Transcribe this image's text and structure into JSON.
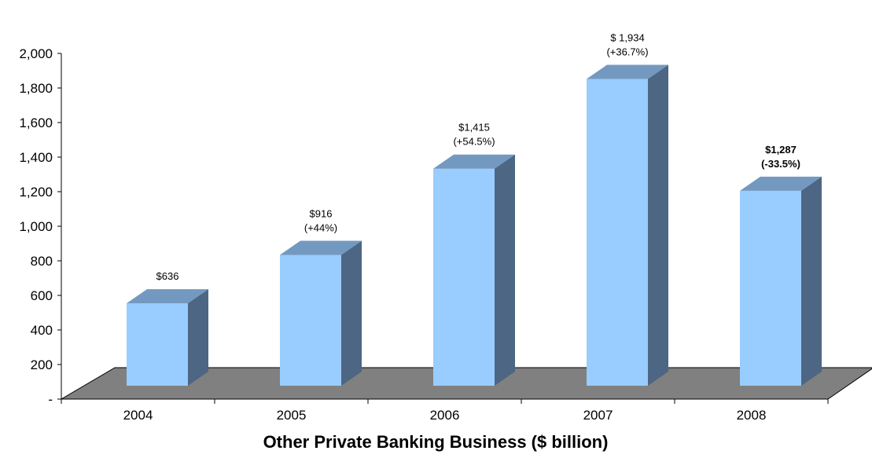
{
  "chart_data": {
    "type": "bar",
    "categories": [
      "2004",
      "2005",
      "2006",
      "2007",
      "2008"
    ],
    "values": [
      636,
      916,
      1415,
      1934,
      1287
    ],
    "data_labels": [
      {
        "amount": "$636",
        "change": "",
        "bold": false
      },
      {
        "amount": "$916",
        "change": "(+44%)",
        "bold": false
      },
      {
        "amount": "$1,415",
        "change": "(+54.5%)",
        "bold": false
      },
      {
        "amount": "$ 1,934",
        "change": "(+36.7%)",
        "bold": false
      },
      {
        "amount": "$1,287",
        "change": "(-33.5%)",
        "bold": true
      }
    ],
    "y_ticks": [
      0,
      200,
      400,
      600,
      800,
      1000,
      1200,
      1400,
      1600,
      1800,
      2000
    ],
    "y_tick_labels": [
      "-",
      "200",
      "400",
      "600",
      "800",
      "1,000",
      "1,200",
      "1,400",
      "1,600",
      "1,800",
      "2,000"
    ],
    "ylim": [
      0,
      2000
    ],
    "xlabel": "Other Private Banking Business ($ billion)",
    "ylabel": "",
    "title": "",
    "grid": false,
    "legend": "none",
    "colors": {
      "bar_front": "#99CCFF",
      "bar_top": "#7399C0",
      "bar_side": "#4D6684",
      "floor": "#808080",
      "axis": "#000000"
    }
  }
}
